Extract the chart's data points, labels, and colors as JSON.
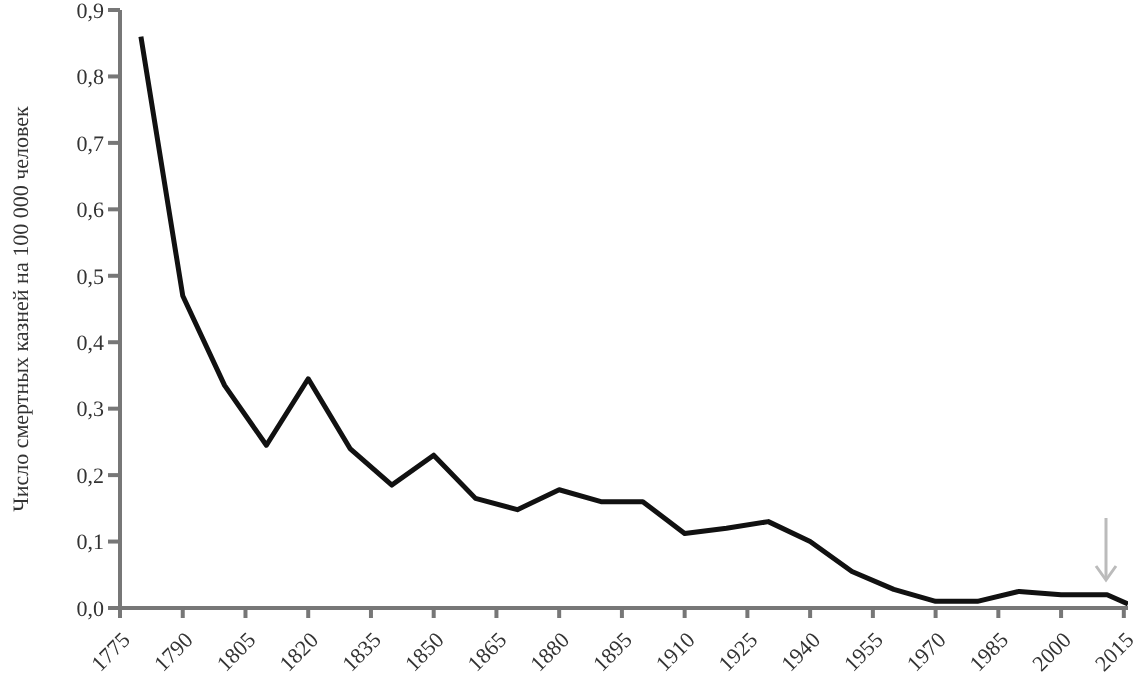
{
  "chart_data": {
    "type": "line",
    "ylabel": "Число смертных казней на 100 000 человек",
    "x": [
      1780,
      1790,
      1800,
      1810,
      1820,
      1830,
      1840,
      1850,
      1860,
      1870,
      1880,
      1890,
      1900,
      1910,
      1920,
      1930,
      1940,
      1950,
      1960,
      1970,
      1980,
      1990,
      2000,
      2011,
      2016
    ],
    "series": [
      {
        "color": "#111111",
        "values": [
          0.86,
          0.47,
          0.335,
          0.245,
          0.345,
          0.24,
          0.185,
          0.23,
          0.165,
          0.148,
          0.178,
          0.16,
          0.16,
          0.112,
          0.12,
          0.13,
          0.1,
          0.055,
          0.028,
          0.01,
          0.01,
          0.025,
          0.02,
          0.02,
          0.006
        ]
      }
    ],
    "xlim": [
      1775,
      2016
    ],
    "xticks": [
      1775,
      1790,
      1805,
      1820,
      1835,
      1850,
      1865,
      1880,
      1895,
      1910,
      1925,
      1940,
      1955,
      1970,
      1985,
      2000,
      2015
    ],
    "ylim": [
      0,
      0.9
    ],
    "yticks": [
      {
        "value": 0,
        "label": "0,0"
      },
      {
        "value": 0.1,
        "label": "0,1"
      },
      {
        "value": 0.2,
        "label": "0,2"
      },
      {
        "value": 0.3,
        "label": "0,3"
      },
      {
        "value": 0.4,
        "label": "0,4"
      },
      {
        "value": 0.5,
        "label": "0,5"
      },
      {
        "value": 0.6,
        "label": "0,6"
      },
      {
        "value": 0.7,
        "label": "0,7"
      },
      {
        "value": 0.8,
        "label": "0,8"
      },
      {
        "value": 0.9,
        "label": "0,9"
      }
    ],
    "grid": false,
    "legend": false,
    "marker": "none",
    "line_style": "solid"
  }
}
